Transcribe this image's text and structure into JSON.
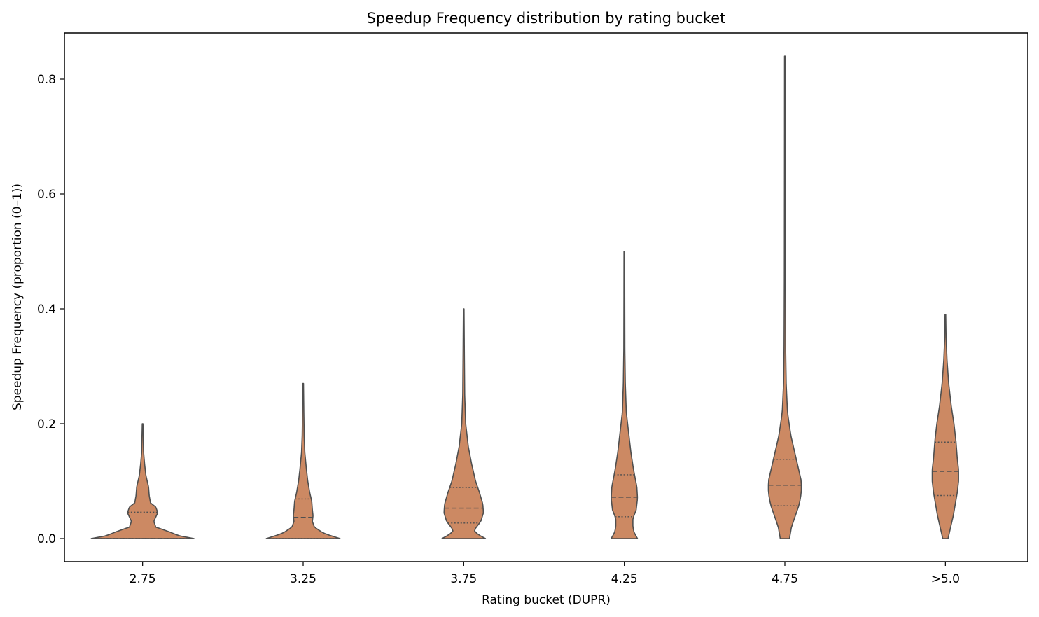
{
  "chart_data": {
    "type": "violin",
    "title": "Speedup Frequency distribution by rating bucket",
    "xlabel": "Rating bucket (DUPR)",
    "ylabel": "Speedup Frequency (proportion (0–1))",
    "ylim": [
      -0.04,
      0.88
    ],
    "yticks": [
      0.0,
      0.2,
      0.4,
      0.6,
      0.8
    ],
    "ytick_labels": [
      "0.0",
      "0.2",
      "0.4",
      "0.6",
      "0.8"
    ],
    "fill_color": "#cc8963",
    "line_color": "#4f4f4f",
    "inner": "quartile",
    "categories": [
      "2.75",
      "3.25",
      "3.75",
      "4.25",
      "4.75",
      ">5.0"
    ],
    "violins": [
      {
        "label": "2.75",
        "min": 0.0,
        "max": 0.2,
        "q1": 0.0,
        "median": 0.0,
        "q3": 0.046,
        "profile": [
          [
            0.0,
            0.78
          ],
          [
            0.005,
            0.55
          ],
          [
            0.012,
            0.4
          ],
          [
            0.02,
            0.2
          ],
          [
            0.03,
            0.17
          ],
          [
            0.045,
            0.23
          ],
          [
            0.055,
            0.2
          ],
          [
            0.062,
            0.12
          ],
          [
            0.075,
            0.1
          ],
          [
            0.09,
            0.09
          ],
          [
            0.11,
            0.05
          ],
          [
            0.13,
            0.03
          ],
          [
            0.15,
            0.015
          ],
          [
            0.175,
            0.01
          ],
          [
            0.2,
            0.005
          ]
        ]
      },
      {
        "label": "3.25",
        "min": 0.0,
        "max": 0.27,
        "q1": 0.0,
        "median": 0.037,
        "q3": 0.069,
        "profile": [
          [
            0.0,
            0.56
          ],
          [
            0.005,
            0.42
          ],
          [
            0.01,
            0.3
          ],
          [
            0.02,
            0.17
          ],
          [
            0.03,
            0.14
          ],
          [
            0.04,
            0.15
          ],
          [
            0.05,
            0.14
          ],
          [
            0.065,
            0.13
          ],
          [
            0.08,
            0.1
          ],
          [
            0.1,
            0.07
          ],
          [
            0.12,
            0.05
          ],
          [
            0.15,
            0.025
          ],
          [
            0.18,
            0.015
          ],
          [
            0.22,
            0.01
          ],
          [
            0.27,
            0.005
          ]
        ]
      },
      {
        "label": "3.75",
        "min": 0.0,
        "max": 0.4,
        "q1": 0.027,
        "median": 0.053,
        "q3": 0.089,
        "profile": [
          [
            0.0,
            0.33
          ],
          [
            0.005,
            0.25
          ],
          [
            0.012,
            0.16
          ],
          [
            0.018,
            0.18
          ],
          [
            0.03,
            0.26
          ],
          [
            0.045,
            0.3
          ],
          [
            0.06,
            0.29
          ],
          [
            0.08,
            0.24
          ],
          [
            0.1,
            0.18
          ],
          [
            0.13,
            0.12
          ],
          [
            0.16,
            0.07
          ],
          [
            0.2,
            0.03
          ],
          [
            0.25,
            0.015
          ],
          [
            0.32,
            0.01
          ],
          [
            0.4,
            0.005
          ]
        ]
      },
      {
        "label": "4.25",
        "min": 0.0,
        "max": 0.5,
        "q1": 0.038,
        "median": 0.072,
        "q3": 0.111,
        "profile": [
          [
            0.0,
            0.2
          ],
          [
            0.01,
            0.15
          ],
          [
            0.02,
            0.13
          ],
          [
            0.035,
            0.13
          ],
          [
            0.05,
            0.18
          ],
          [
            0.07,
            0.2
          ],
          [
            0.09,
            0.19
          ],
          [
            0.12,
            0.14
          ],
          [
            0.15,
            0.1
          ],
          [
            0.18,
            0.07
          ],
          [
            0.22,
            0.03
          ],
          [
            0.27,
            0.015
          ],
          [
            0.33,
            0.008
          ],
          [
            0.42,
            0.006
          ],
          [
            0.5,
            0.005
          ]
        ]
      },
      {
        "label": "4.75",
        "min": 0.0,
        "max": 0.84,
        "q1": 0.057,
        "median": 0.093,
        "q3": 0.138,
        "profile": [
          [
            0.0,
            0.07
          ],
          [
            0.02,
            0.1
          ],
          [
            0.04,
            0.16
          ],
          [
            0.06,
            0.22
          ],
          [
            0.08,
            0.25
          ],
          [
            0.1,
            0.25
          ],
          [
            0.12,
            0.21
          ],
          [
            0.15,
            0.15
          ],
          [
            0.18,
            0.09
          ],
          [
            0.22,
            0.04
          ],
          [
            0.27,
            0.02
          ],
          [
            0.33,
            0.012
          ],
          [
            0.45,
            0.008
          ],
          [
            0.65,
            0.006
          ],
          [
            0.84,
            0.005
          ]
        ]
      },
      {
        "label": ">5.0",
        "min": 0.0,
        "max": 0.39,
        "q1": 0.075,
        "median": 0.117,
        "q3": 0.168,
        "profile": [
          [
            0.0,
            0.04
          ],
          [
            0.02,
            0.08
          ],
          [
            0.04,
            0.12
          ],
          [
            0.06,
            0.15
          ],
          [
            0.08,
            0.18
          ],
          [
            0.1,
            0.2
          ],
          [
            0.12,
            0.2
          ],
          [
            0.14,
            0.18
          ],
          [
            0.17,
            0.16
          ],
          [
            0.2,
            0.13
          ],
          [
            0.23,
            0.09
          ],
          [
            0.27,
            0.05
          ],
          [
            0.31,
            0.025
          ],
          [
            0.35,
            0.01
          ],
          [
            0.39,
            0.005
          ]
        ]
      }
    ]
  }
}
